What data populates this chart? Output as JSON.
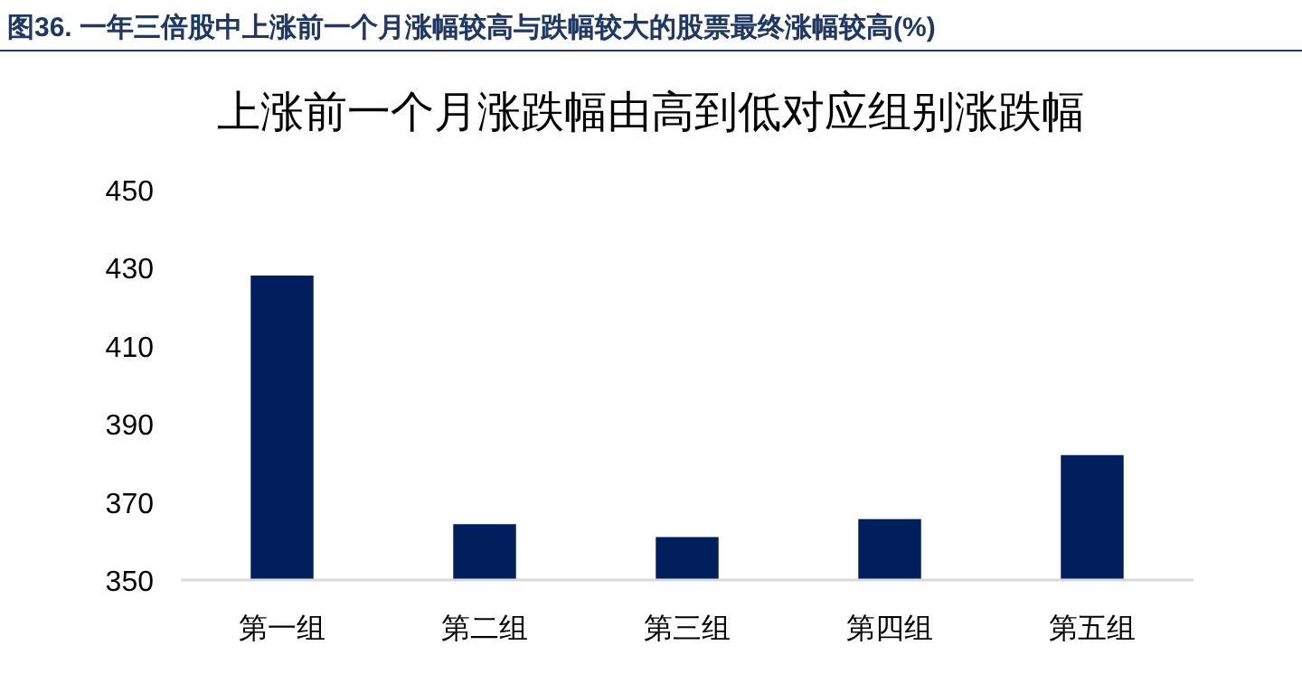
{
  "chart_data": {
    "type": "bar",
    "title": "图36. 一年三倍股中上涨前一个月涨幅较高与跌幅较大的股票最终涨幅较高(%)",
    "subtitle": "上涨前一个月涨跌幅由高到低对应组别涨跌幅",
    "categories": [
      "第一组",
      "第二组",
      "第三组",
      "第四组",
      "第五组"
    ],
    "values": [
      428,
      364.3,
      361,
      365.6,
      382
    ],
    "color": "#001f5c",
    "ylim": [
      350,
      450
    ],
    "yticks": [
      350,
      370,
      390,
      410,
      430,
      450
    ],
    "grid": false
  }
}
